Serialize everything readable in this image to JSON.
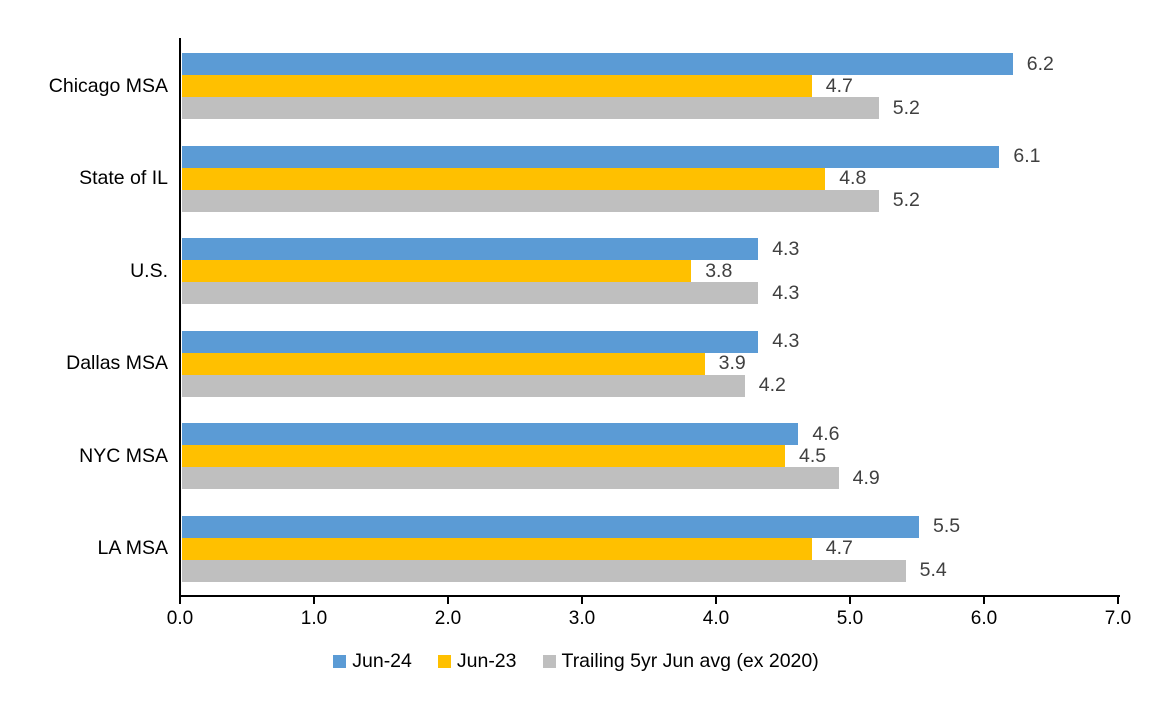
{
  "chart_data": {
    "type": "bar",
    "orientation": "horizontal",
    "title": "",
    "categories": [
      "Chicago MSA",
      "State of IL",
      "U.S.",
      "Dallas MSA",
      "NYC MSA",
      "LA MSA"
    ],
    "series": [
      {
        "name": "Jun-24",
        "color": "#5B9BD5",
        "values": [
          6.2,
          6.1,
          4.3,
          4.3,
          4.6,
          5.5
        ]
      },
      {
        "name": "Jun-23",
        "color": "#FFC000",
        "values": [
          4.7,
          4.8,
          3.8,
          3.9,
          4.5,
          4.7
        ]
      },
      {
        "name": "Trailing 5yr Jun avg (ex 2020)",
        "color": "#BFBFBF",
        "values": [
          5.2,
          5.2,
          4.3,
          4.2,
          4.9,
          5.4
        ]
      }
    ],
    "data_labels": true,
    "data_label_format": "0.0",
    "data_label_color": "#404040",
    "x_axis": {
      "min": 0,
      "max": 7,
      "tick_step": 1,
      "tick_labels": [
        "0.0",
        "1.0",
        "2.0",
        "3.0",
        "4.0",
        "5.0",
        "6.0",
        "7.0"
      ]
    },
    "grid": false,
    "legend_position": "bottom",
    "axis_color": "#000000"
  }
}
